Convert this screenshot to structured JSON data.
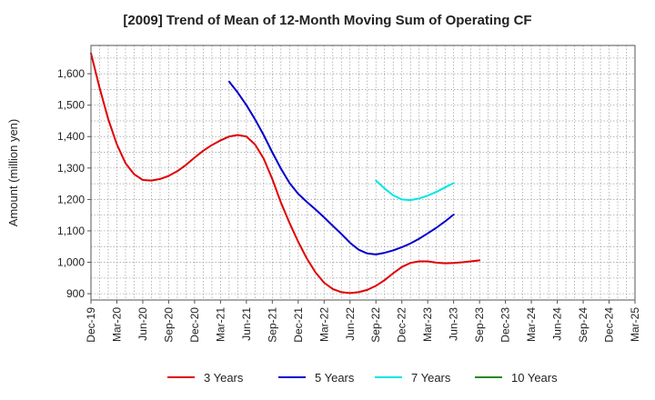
{
  "chart_data": {
    "type": "line",
    "title": "[2009]  Trend of Mean of 12-Month Moving Sum of Operating CF",
    "xlabel": "",
    "ylabel": "Amount (million yen)",
    "x_ticks": [
      "Dec-19",
      "Mar-20",
      "Jun-20",
      "Sep-20",
      "Dec-20",
      "Mar-21",
      "Jun-21",
      "Sep-21",
      "Dec-21",
      "Mar-22",
      "Jun-22",
      "Sep-22",
      "Dec-22",
      "Mar-23",
      "Jun-23",
      "Sep-23",
      "Dec-23",
      "Mar-24",
      "Jun-24",
      "Sep-24",
      "Dec-24",
      "Mar-25"
    ],
    "y_ticks": [
      "900",
      "1,000",
      "1,100",
      "1,200",
      "1,300",
      "1,400",
      "1,500",
      "1,600"
    ],
    "ylim": [
      880,
      1690
    ],
    "grid": true,
    "legend_position": "bottom",
    "series": [
      {
        "name": "3 Years",
        "color": "#e00000",
        "points": [
          [
            0,
            1665
          ],
          [
            1,
            1555
          ],
          [
            2,
            1455
          ],
          [
            3,
            1375
          ],
          [
            4,
            1315
          ],
          [
            5,
            1280
          ],
          [
            6,
            1262
          ],
          [
            7,
            1260
          ],
          [
            8,
            1265
          ],
          [
            9,
            1275
          ],
          [
            10,
            1290
          ],
          [
            11,
            1310
          ],
          [
            12,
            1333
          ],
          [
            13,
            1355
          ],
          [
            14,
            1373
          ],
          [
            15,
            1388
          ],
          [
            16,
            1400
          ],
          [
            17,
            1405
          ],
          [
            18,
            1400
          ],
          [
            19,
            1375
          ],
          [
            20,
            1330
          ],
          [
            21,
            1265
          ],
          [
            22,
            1190
          ],
          [
            23,
            1125
          ],
          [
            24,
            1065
          ],
          [
            25,
            1012
          ],
          [
            26,
            968
          ],
          [
            27,
            935
          ],
          [
            28,
            915
          ],
          [
            29,
            905
          ],
          [
            30,
            902
          ],
          [
            31,
            905
          ],
          [
            32,
            912
          ],
          [
            33,
            925
          ],
          [
            34,
            943
          ],
          [
            35,
            965
          ],
          [
            36,
            985
          ],
          [
            37,
            998
          ],
          [
            38,
            1003
          ],
          [
            39,
            1003
          ],
          [
            40,
            999
          ],
          [
            41,
            997
          ],
          [
            42,
            998
          ],
          [
            43,
            1000
          ],
          [
            44,
            1003
          ],
          [
            45,
            1006
          ]
        ]
      },
      {
        "name": "5 Years",
        "color": "#0000cc",
        "points": [
          [
            16,
            1575
          ],
          [
            17,
            1540
          ],
          [
            18,
            1500
          ],
          [
            19,
            1455
          ],
          [
            20,
            1405
          ],
          [
            21,
            1350
          ],
          [
            22,
            1298
          ],
          [
            23,
            1252
          ],
          [
            24,
            1218
          ],
          [
            25,
            1192
          ],
          [
            26,
            1168
          ],
          [
            27,
            1143
          ],
          [
            28,
            1116
          ],
          [
            29,
            1090
          ],
          [
            30,
            1062
          ],
          [
            31,
            1040
          ],
          [
            32,
            1028
          ],
          [
            33,
            1025
          ],
          [
            34,
            1030
          ],
          [
            35,
            1038
          ],
          [
            36,
            1048
          ],
          [
            37,
            1060
          ],
          [
            38,
            1075
          ],
          [
            39,
            1092
          ],
          [
            40,
            1110
          ],
          [
            41,
            1130
          ],
          [
            42,
            1152
          ]
        ]
      },
      {
        "name": "7 Years",
        "color": "#00e5e5",
        "points": [
          [
            33,
            1260
          ],
          [
            34,
            1235
          ],
          [
            35,
            1213
          ],
          [
            36,
            1200
          ],
          [
            37,
            1198
          ],
          [
            38,
            1203
          ],
          [
            39,
            1212
          ],
          [
            40,
            1224
          ],
          [
            41,
            1238
          ],
          [
            42,
            1252
          ]
        ]
      },
      {
        "name": "10 Years",
        "color": "#228b22",
        "points": []
      }
    ]
  }
}
